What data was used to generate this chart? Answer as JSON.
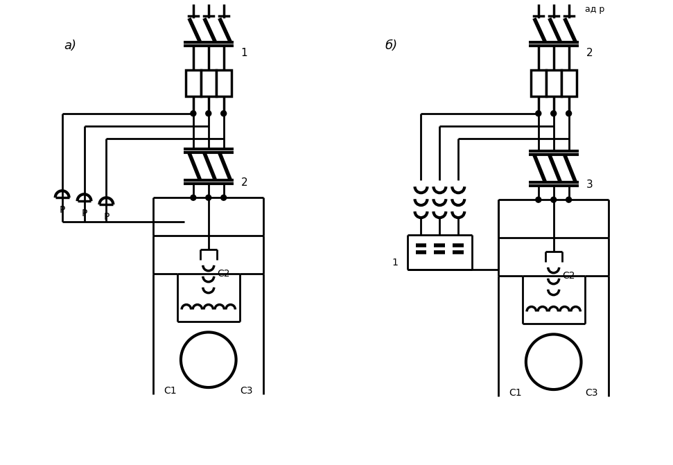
{
  "bg": "#ffffff",
  "lc": "#000000",
  "lw": 2.0,
  "fig_w": 9.71,
  "fig_h": 6.71,
  "label_a": "a)",
  "label_b": "б)",
  "label_1a": "1",
  "label_2a": "2",
  "label_2b": "2",
  "label_3b": "3",
  "label_1b_bot": "1",
  "label_C1": "C1",
  "label_C2": "C2",
  "label_C3": "C3",
  "label_P": "P",
  "title_partial": "ад р"
}
